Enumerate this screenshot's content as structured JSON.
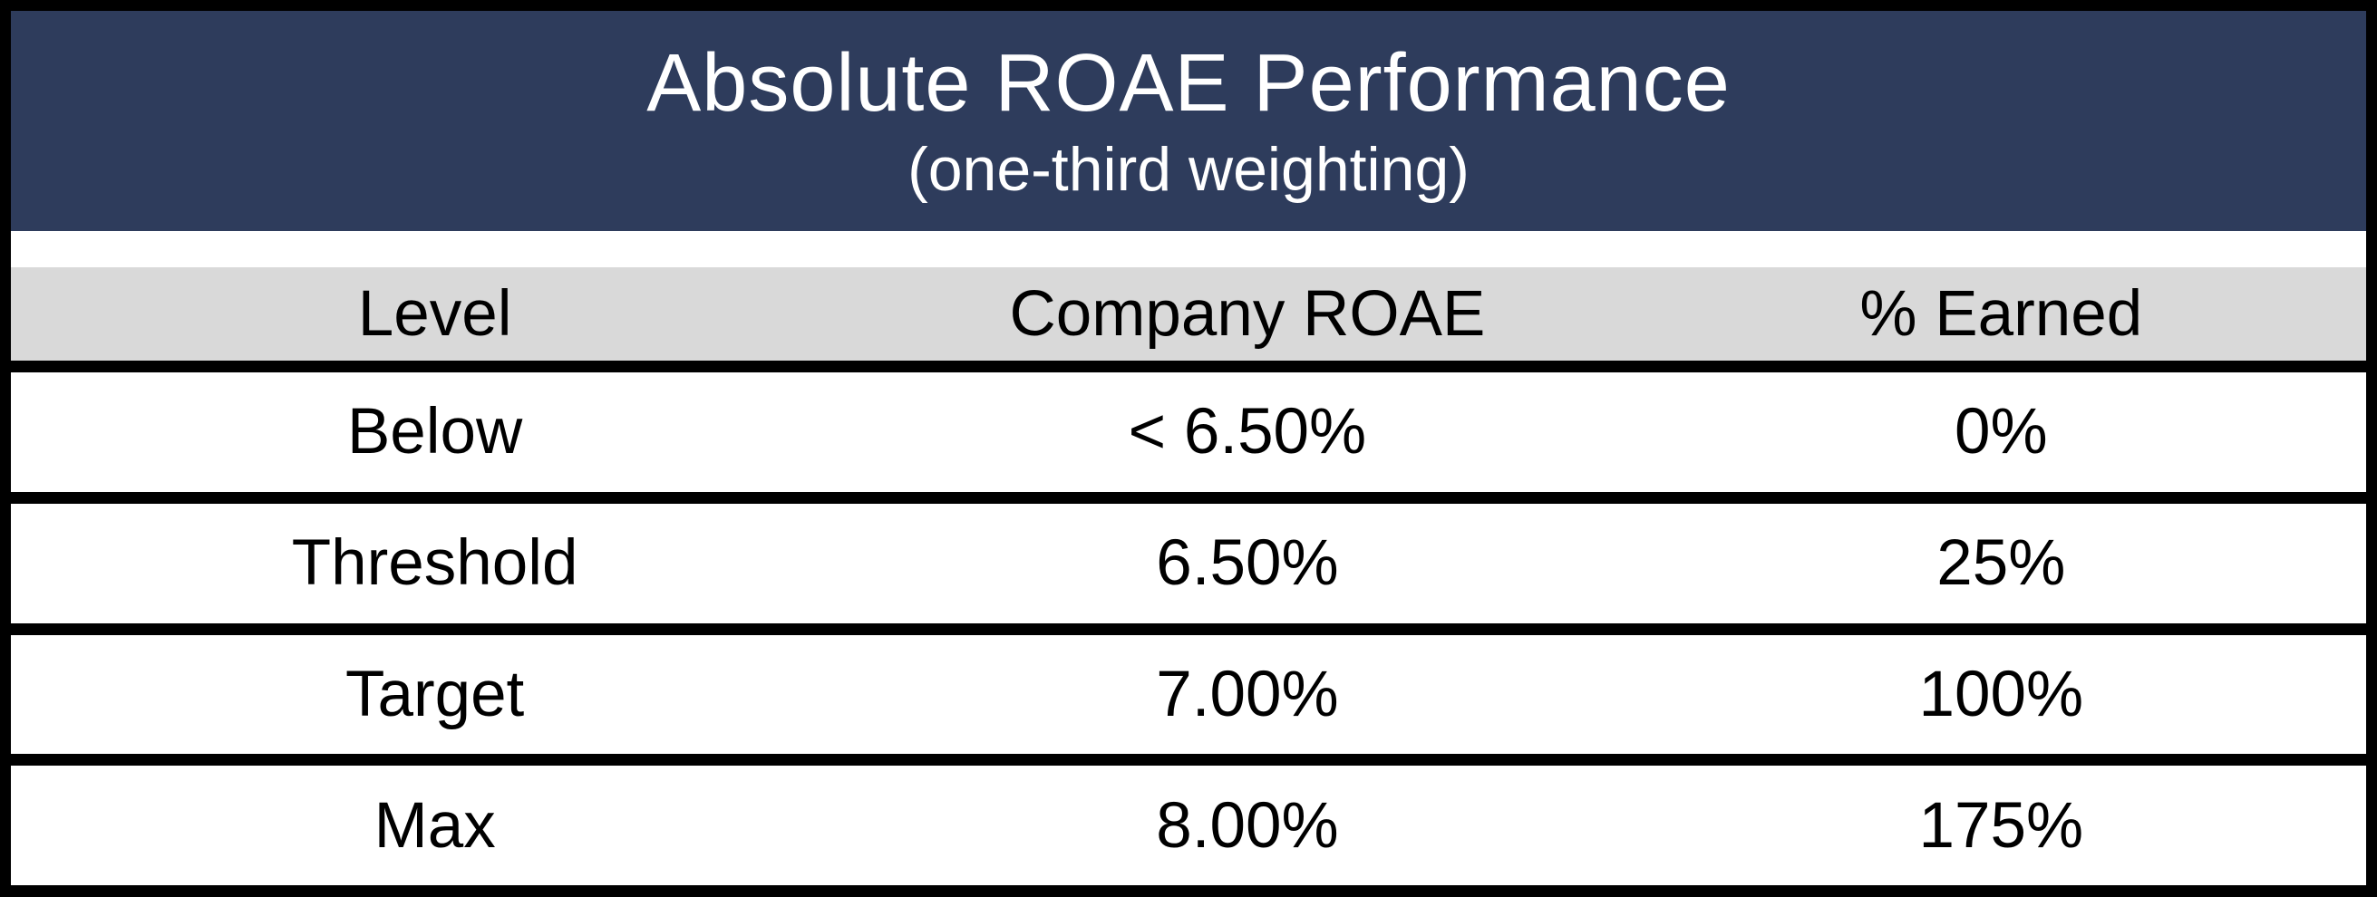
{
  "chart_data": {
    "type": "table",
    "title": "Absolute ROAE Performance",
    "subtitle": "(one-third weighting)",
    "columns": [
      "Level",
      "Company ROAE",
      "% Earned"
    ],
    "rows": [
      [
        "Below",
        "< 6.50%",
        "0%"
      ],
      [
        "Threshold",
        "6.50%",
        "25%"
      ],
      [
        "Target",
        "7.00%",
        "100%"
      ],
      [
        "Max",
        "8.00%",
        "175%"
      ]
    ]
  },
  "colors": {
    "title_band_background": "#2e3c5c",
    "title_text": "#ffffff",
    "header_row_background": "#d9d9d9",
    "body_text": "#000000",
    "border_and_separators": "#000000",
    "row_background": "#ffffff"
  }
}
